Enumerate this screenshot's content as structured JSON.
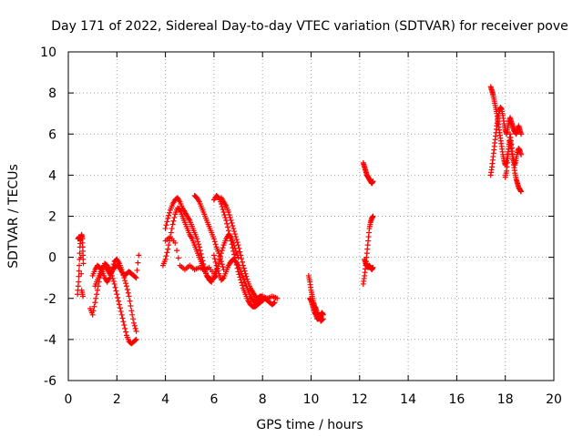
{
  "chart_data": {
    "type": "scatter",
    "title": "Day 171 of 2022, Sidereal Day-to-day VTEC variation (SDTVAR) for receiver pove",
    "xlabel": "GPS time / hours",
    "ylabel": "SDTVAR / TECUs",
    "xlim": [
      0,
      20
    ],
    "ylim": [
      -6,
      10
    ],
    "xticks": [
      0,
      2,
      4,
      6,
      8,
      10,
      12,
      14,
      16,
      18,
      20
    ],
    "yticks": [
      -6,
      -4,
      -2,
      0,
      2,
      4,
      6,
      8,
      10
    ],
    "grid": true,
    "marker": "+",
    "series": [
      {
        "name": "SDTVAR",
        "color": "#ff0000",
        "tracks": [
          {
            "x": [
              0.38,
              0.42,
              0.45,
              0.48,
              0.52,
              0.55,
              0.58,
              0.6,
              0.62
            ],
            "y": [
              -1.8,
              -1.2,
              -0.4,
              0.5,
              1.0,
              1.1,
              0.9,
              0.3,
              -0.3
            ]
          },
          {
            "x": [
              0.4,
              0.45,
              0.5,
              0.55,
              0.6
            ],
            "y": [
              0.9,
              1.0,
              0.8,
              -1.6,
              -1.9
            ]
          },
          {
            "x": [
              0.9,
              1.0,
              1.1,
              1.2,
              1.3,
              1.4,
              1.5,
              1.6,
              1.7,
              1.8,
              1.9,
              2.0,
              2.1,
              2.2,
              2.3,
              2.4,
              2.5,
              2.6,
              2.7,
              2.8
            ],
            "y": [
              -2.5,
              -2.8,
              -2.2,
              -1.6,
              -1.0,
              -0.6,
              -0.3,
              -0.4,
              -0.6,
              -0.9,
              -1.3,
              -1.8,
              -2.3,
              -2.8,
              -3.3,
              -3.8,
              -4.1,
              -4.2,
              -4.1,
              -4.0
            ]
          },
          {
            "x": [
              1.0,
              1.1,
              1.2,
              1.3,
              1.4,
              1.5,
              1.6,
              1.7,
              1.8,
              1.9,
              2.0,
              2.1,
              2.2,
              2.3,
              2.4,
              2.5,
              2.6,
              2.7,
              2.8
            ],
            "y": [
              -0.9,
              -0.6,
              -0.4,
              -0.5,
              -0.7,
              -1.0,
              -1.2,
              -1.0,
              -0.6,
              -0.2,
              -0.1,
              -0.3,
              -0.6,
              -1.0,
              -1.4,
              -1.9,
              -2.6,
              -3.2,
              -3.6
            ]
          },
          {
            "x": [
              1.1,
              1.2,
              1.3,
              1.4,
              1.5,
              1.6,
              1.7,
              1.8,
              1.9,
              2.0,
              2.1,
              2.2,
              2.3,
              2.4,
              2.5,
              2.6,
              2.7,
              2.8,
              2.9
            ],
            "y": [
              -1.4,
              -1.1,
              -0.8,
              -0.5,
              -0.4,
              -0.6,
              -0.8,
              -0.7,
              -0.5,
              -0.4,
              -0.5,
              -0.7,
              -0.9,
              -0.8,
              -0.7,
              -0.8,
              -0.9,
              -1.0,
              0.1
            ]
          },
          {
            "x": [
              3.9,
              4.0,
              4.1,
              4.2,
              4.3,
              4.4,
              4.5,
              4.6,
              4.7,
              4.8,
              4.9,
              5.0,
              5.1,
              5.2,
              5.3,
              5.4,
              5.5,
              5.6,
              5.7,
              5.8,
              5.9,
              6.0,
              6.1
            ],
            "y": [
              -0.4,
              -0.1,
              0.4,
              1.0,
              1.6,
              2.1,
              2.4,
              2.3,
              2.0,
              1.7,
              1.4,
              1.1,
              0.9,
              0.6,
              0.3,
              0.0,
              -0.3,
              -0.6,
              -0.9,
              -1.0,
              -1.1,
              -1.0,
              -0.9
            ]
          },
          {
            "x": [
              4.0,
              4.1,
              4.2,
              4.3,
              4.4,
              4.5,
              4.6,
              4.7,
              4.8,
              4.9,
              5.0,
              5.1,
              5.2,
              5.3,
              5.4,
              5.5,
              5.6,
              5.7,
              5.8,
              5.9,
              6.0,
              6.1
            ],
            "y": [
              1.4,
              1.9,
              2.3,
              2.6,
              2.8,
              2.9,
              2.7,
              2.4,
              2.2,
              2.0,
              1.8,
              1.5,
              1.2,
              0.9,
              0.5,
              0.0,
              -0.5,
              -0.9,
              -1.1,
              -1.2,
              -0.9,
              -0.6
            ]
          },
          {
            "x": [
              4.0,
              4.2,
              4.4,
              4.6,
              4.8,
              5.0,
              5.2,
              5.4,
              5.6,
              5.8,
              6.0
            ],
            "y": [
              0.8,
              1.0,
              0.7,
              -0.4,
              -0.6,
              -0.4,
              -0.6,
              -0.5,
              -0.6,
              -0.5,
              -0.8
            ]
          },
          {
            "x": [
              5.2,
              5.3,
              5.4,
              5.5,
              5.6,
              5.7,
              5.8,
              5.9,
              6.0,
              6.1,
              6.2,
              6.3,
              6.4
            ],
            "y": [
              3.0,
              2.9,
              2.7,
              2.4,
              2.1,
              1.8,
              1.5,
              1.2,
              0.9,
              0.5,
              0.2,
              -0.2,
              -0.6
            ]
          },
          {
            "x": [
              6.0,
              6.1,
              6.2,
              6.3,
              6.4,
              6.5,
              6.6,
              6.7,
              6.8,
              6.9,
              7.0,
              7.1,
              7.2,
              7.3,
              7.4,
              7.5,
              7.6,
              7.7,
              7.8,
              7.9,
              8.0,
              8.1,
              8.2,
              8.3,
              8.4,
              8.5
            ],
            "y": [
              2.8,
              3.0,
              2.9,
              2.6,
              2.2,
              1.8,
              1.3,
              0.8,
              0.3,
              -0.2,
              -0.7,
              -1.1,
              -1.5,
              -1.8,
              -2.1,
              -2.3,
              -2.4,
              -2.4,
              -2.3,
              -2.2,
              -2.1,
              -2.0,
              -2.1,
              -2.2,
              -2.3,
              -2.2
            ]
          },
          {
            "x": [
              6.0,
              6.1,
              6.2,
              6.3,
              6.4,
              6.5,
              6.6,
              6.7,
              6.8,
              6.9,
              7.0,
              7.1,
              7.2,
              7.3,
              7.4,
              7.5,
              7.6,
              7.7,
              7.8,
              7.9,
              8.0,
              8.2,
              8.4,
              8.6
            ],
            "y": [
              0.1,
              -0.4,
              -0.8,
              -1.1,
              -1.0,
              -0.7,
              -0.4,
              -0.2,
              -0.1,
              -0.2,
              -0.4,
              -0.7,
              -1.0,
              -1.3,
              -1.6,
              -1.9,
              -2.1,
              -2.2,
              -2.0,
              -1.9,
              -1.9,
              -2.0,
              -1.9,
              -2.0
            ]
          },
          {
            "x": [
              6.3,
              6.4,
              6.5,
              6.6,
              6.7,
              6.8,
              6.9,
              7.0,
              7.1,
              7.2,
              7.3,
              7.4,
              7.5,
              7.6,
              7.7,
              7.8,
              7.9,
              8.0
            ],
            "y": [
              2.9,
              2.7,
              2.5,
              2.2,
              1.8,
              1.4,
              1.0,
              0.6,
              0.1,
              -0.4,
              -0.8,
              -1.2,
              -1.5,
              -1.7,
              -1.9,
              -2.0,
              -2.1,
              -2.0
            ]
          },
          {
            "x": [
              6.1,
              6.2,
              6.3,
              6.4,
              6.5,
              6.6,
              6.7,
              6.8,
              6.9,
              7.0
            ],
            "y": [
              -0.7,
              -0.3,
              0.2,
              0.6,
              0.9,
              1.1,
              1.0,
              0.7,
              0.3,
              0.0
            ]
          },
          {
            "x": [
              9.9,
              9.95,
              10.0,
              10.05,
              10.1,
              10.15,
              10.2,
              10.25,
              10.3,
              10.35,
              10.4,
              10.45,
              10.5
            ],
            "y": [
              -0.9,
              -1.2,
              -1.6,
              -1.9,
              -2.2,
              -2.4,
              -2.5,
              -2.7,
              -2.8,
              -2.9,
              -2.8,
              -2.7,
              -2.8
            ]
          },
          {
            "x": [
              9.95,
              10.0,
              10.05,
              10.1,
              10.15,
              10.2,
              10.25,
              10.3,
              10.35,
              10.4,
              10.5
            ],
            "y": [
              -2.0,
              -2.1,
              -2.3,
              -2.5,
              -2.7,
              -2.8,
              -3.0,
              -3.0,
              -2.9,
              -3.1,
              -3.0
            ]
          },
          {
            "x": [
              12.15,
              12.2,
              12.25,
              12.3,
              12.35,
              12.4,
              12.45,
              12.5,
              12.55
            ],
            "y": [
              4.6,
              4.4,
              4.2,
              4.0,
              3.9,
              3.8,
              3.7,
              3.6,
              3.7
            ]
          },
          {
            "x": [
              12.15,
              12.2,
              12.25,
              12.3,
              12.35,
              12.4,
              12.45,
              12.5,
              12.55
            ],
            "y": [
              -1.3,
              -0.9,
              -0.4,
              0.2,
              0.8,
              1.4,
              1.7,
              1.9,
              2.0
            ]
          },
          {
            "x": [
              12.2,
              12.25,
              12.3,
              12.35,
              12.4,
              12.45,
              12.5,
              12.55
            ],
            "y": [
              -0.1,
              -0.3,
              -0.4,
              -0.5,
              -0.4,
              -0.5,
              -0.6,
              -0.5
            ]
          },
          {
            "x": [
              17.4,
              17.45,
              17.5,
              17.55,
              17.6,
              17.65,
              17.7,
              17.75,
              17.8,
              17.85,
              17.9,
              17.95,
              18.0,
              18.05,
              18.1,
              18.15,
              18.2,
              18.25,
              18.3,
              18.35,
              18.4,
              18.45,
              18.5,
              18.55,
              18.6,
              18.65
            ],
            "y": [
              8.3,
              8.1,
              7.9,
              7.6,
              7.3,
              7.0,
              6.6,
              6.2,
              5.8,
              5.4,
              5.0,
              4.7,
              4.5,
              4.7,
              5.0,
              5.4,
              5.7,
              5.3,
              4.9,
              4.5,
              4.1,
              3.8,
              3.6,
              3.4,
              3.3,
              3.2
            ]
          },
          {
            "x": [
              17.4,
              17.45,
              17.5,
              17.55,
              17.6,
              17.65,
              17.7,
              17.75,
              17.8,
              17.85,
              17.9,
              17.95,
              18.0,
              18.05,
              18.1,
              18.15,
              18.2,
              18.25,
              18.3,
              18.35,
              18.4,
              18.45,
              18.5,
              18.55,
              18.6,
              18.65
            ],
            "y": [
              4.0,
              4.4,
              4.9,
              5.4,
              5.9,
              6.4,
              6.8,
              7.1,
              7.3,
              7.2,
              6.9,
              6.5,
              6.2,
              6.0,
              6.3,
              6.6,
              6.8,
              6.6,
              6.4,
              6.2,
              6.1,
              6.0,
              6.2,
              6.4,
              6.2,
              6.0
            ]
          },
          {
            "x": [
              18.0,
              18.05,
              18.1,
              18.15,
              18.2,
              18.25,
              18.3,
              18.35,
              18.4,
              18.45,
              18.5,
              18.55,
              18.6,
              18.65
            ],
            "y": [
              3.9,
              4.2,
              4.8,
              5.5,
              6.0,
              5.5,
              5.0,
              4.7,
              4.5,
              4.8,
              5.1,
              5.3,
              5.2,
              5.0
            ]
          }
        ]
      }
    ]
  }
}
